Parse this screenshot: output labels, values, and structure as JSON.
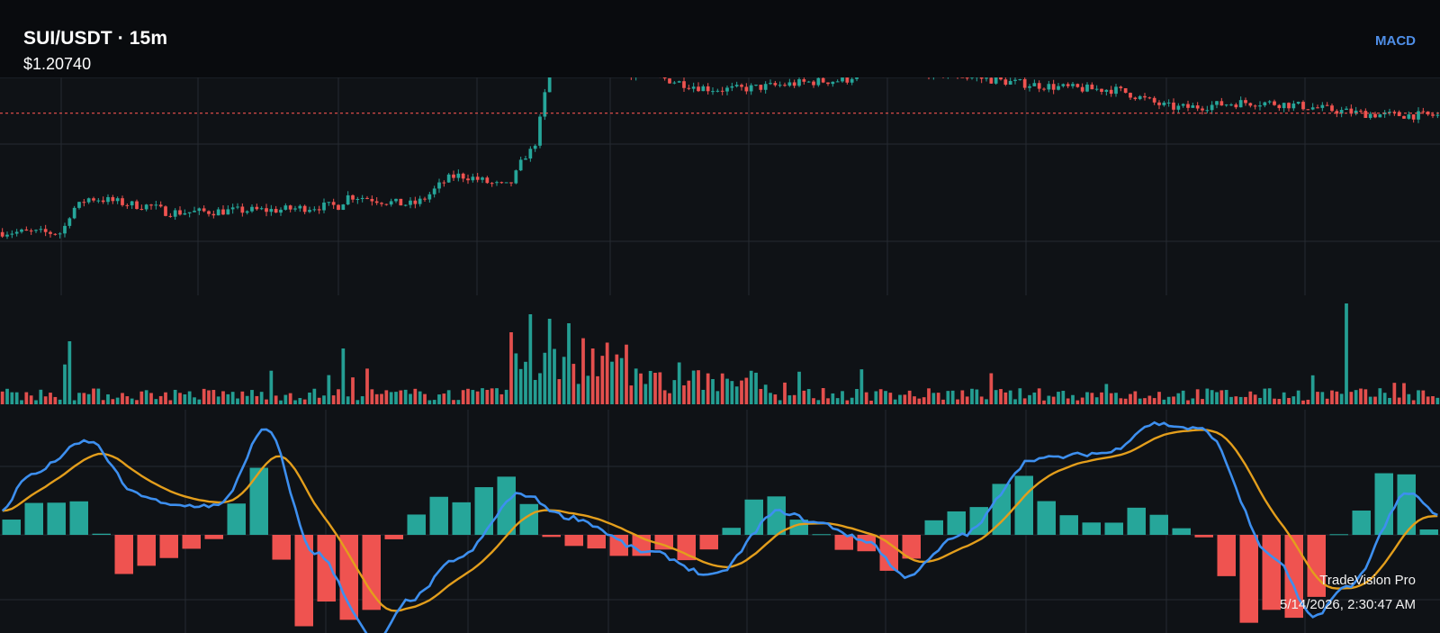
{
  "header": {
    "symbol": "SUI/USDT · 15m",
    "price": "$1.20740",
    "indicator_label": "MACD"
  },
  "footer": {
    "brand": "TradeVision Pro",
    "timestamp": "5/14/2026, 2:30:47 AM"
  },
  "colors": {
    "background": "#0f1216",
    "header_band": "#090b0e",
    "grid": "#262a31",
    "up": "#26a69a",
    "down": "#ef5350",
    "macd_line": "#3d8fef",
    "signal_line": "#e39e1c",
    "indicator_label": "#4f8fe8",
    "price_line": "#ef5350"
  },
  "chart_data": {
    "type": "candlestick",
    "bars": 300,
    "current_price": 1.2074,
    "price_anchors": [
      [
        0,
        1.045
      ],
      [
        12,
        1.044
      ],
      [
        15,
        1.078
      ],
      [
        18,
        1.091
      ],
      [
        30,
        1.081
      ],
      [
        35,
        1.072
      ],
      [
        55,
        1.075
      ],
      [
        70,
        1.081
      ],
      [
        72,
        1.094
      ],
      [
        85,
        1.083
      ],
      [
        95,
        1.122
      ],
      [
        105,
        1.108
      ],
      [
        110,
        1.155
      ],
      [
        115,
        1.275
      ],
      [
        119,
        1.288
      ],
      [
        130,
        1.262
      ],
      [
        150,
        1.24
      ],
      [
        175,
        1.252
      ],
      [
        180,
        1.268
      ],
      [
        230,
        1.24
      ],
      [
        245,
        1.215
      ],
      [
        260,
        1.222
      ],
      [
        290,
        1.205
      ],
      [
        300,
        1.204
      ]
    ],
    "volume_spikes": [
      [
        14,
        70
      ],
      [
        71,
        62
      ],
      [
        106,
        80
      ],
      [
        110,
        100
      ],
      [
        114,
        95
      ],
      [
        118,
        90
      ],
      [
        280,
        112
      ]
    ],
    "macd_anchors": [
      [
        0,
        0.2
      ],
      [
        5,
        0.5
      ],
      [
        18,
        0.8
      ],
      [
        28,
        0.35
      ],
      [
        35,
        0.25
      ],
      [
        45,
        0.25
      ],
      [
        55,
        0.9
      ],
      [
        65,
        -0.15
      ],
      [
        78,
        -0.9
      ],
      [
        85,
        -0.55
      ],
      [
        95,
        -0.2
      ],
      [
        108,
        0.35
      ],
      [
        118,
        0.15
      ],
      [
        135,
        -0.15
      ],
      [
        148,
        -0.35
      ],
      [
        162,
        0.2
      ],
      [
        170,
        0.1
      ],
      [
        180,
        -0.05
      ],
      [
        188,
        -0.35
      ],
      [
        200,
        0.0
      ],
      [
        215,
        0.65
      ],
      [
        230,
        0.7
      ],
      [
        240,
        0.95
      ],
      [
        250,
        0.9
      ],
      [
        265,
        -0.2
      ],
      [
        273,
        -0.7
      ],
      [
        280,
        -0.45
      ],
      [
        293,
        0.35
      ],
      [
        300,
        0.15
      ]
    ]
  }
}
